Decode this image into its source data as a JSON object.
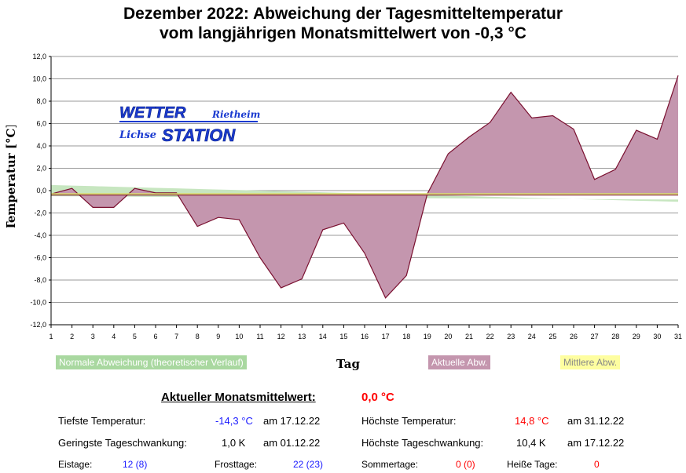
{
  "title_line1": "Dezember 2022: Abweichung der Tagesmitteltemperatur",
  "title_line2": "vom langjährigen Monatsmittelwert von -0,3 °C",
  "logo": {
    "word1": "WETTER",
    "word2": "STATION",
    "place1": "Rietheim",
    "place2": "Lichse"
  },
  "legend": {
    "normal": "Normale Abweichung (theoretischer Verlauf)",
    "actual": "Aktuelle Abw.",
    "mean": "Mittlere Abw."
  },
  "colors": {
    "actual_fill": "#c496ae",
    "actual_line": "#7a1030",
    "normal_fill": "#c7e6c0",
    "mean_line": "#d8d870",
    "grid": "#999999"
  },
  "chart_data": {
    "type": "area",
    "title": "Dezember 2022: Abweichung der Tagesmitteltemperatur vom langjährigen Monatsmittelwert von -0,3 °C",
    "xlabel": "Tag",
    "ylabel": "Temperatur [°C]",
    "ylim": [
      -12,
      12
    ],
    "yticks": [
      "12,0",
      "10,0",
      "8,0",
      "6,0",
      "4,0",
      "2,0",
      "0,0",
      "-2,0",
      "-4,0",
      "-6,0",
      "-8,0",
      "-10,0",
      "-12,0"
    ],
    "ytick_values": [
      12,
      10,
      8,
      6,
      4,
      2,
      0,
      -2,
      -4,
      -6,
      -8,
      -10,
      -12
    ],
    "x": [
      1,
      2,
      3,
      4,
      5,
      6,
      7,
      8,
      9,
      10,
      11,
      12,
      13,
      14,
      15,
      16,
      17,
      18,
      19,
      20,
      21,
      22,
      23,
      24,
      25,
      26,
      27,
      28,
      29,
      30,
      31
    ],
    "series": [
      {
        "name": "Aktuelle Abw.",
        "values": [
          -0.3,
          0.2,
          -1.5,
          -1.5,
          0.2,
          -0.2,
          -0.2,
          -3.2,
          -2.4,
          -2.6,
          -6.0,
          -8.7,
          -7.9,
          -3.5,
          -2.9,
          -5.6,
          -9.6,
          -7.6,
          -0.3,
          3.3,
          4.8,
          6.1,
          8.8,
          6.5,
          6.7,
          5.5,
          1.0,
          1.9,
          5.4,
          4.6,
          10.3
        ]
      },
      {
        "name": "Normale Abweichung (upper)",
        "values": [
          0.5,
          0.45,
          0.4,
          0.35,
          0.3,
          0.25,
          0.2,
          0.15,
          0.1,
          0.05,
          0.0,
          -0.05,
          -0.1,
          -0.15,
          -0.2,
          -0.25,
          -0.3,
          -0.35,
          -0.4,
          -0.45,
          -0.5,
          -0.55,
          -0.6,
          -0.65,
          -0.7,
          -0.75,
          -0.8,
          -0.85,
          -0.9,
          -0.95,
          -1.0
        ]
      },
      {
        "name": "Mittlere Abw.",
        "values": [
          -0.3,
          -0.3,
          -0.3,
          -0.3,
          -0.3,
          -0.3,
          -0.3,
          -0.3,
          -0.3,
          -0.3,
          -0.3,
          -0.3,
          -0.3,
          -0.3,
          -0.3,
          -0.3,
          -0.3,
          -0.3,
          -0.3,
          -0.3,
          -0.3,
          -0.3,
          -0.3,
          -0.3,
          -0.3,
          -0.3,
          -0.3,
          -0.3,
          -0.3,
          -0.3,
          -0.3
        ]
      }
    ]
  },
  "stats": {
    "monthly_label": "Aktueller Monatsmittelwert:",
    "monthly_value": "0,0 °C",
    "min_label": "Tiefste Temperatur:",
    "min_value": "-14,3 °C",
    "min_date": "am 17.12.22",
    "max_label": "Höchste Temperatur:",
    "max_value": "14,8 °C",
    "max_date": "am 31.12.22",
    "minrange_label": "Geringste Tageschwankung:",
    "minrange_value": "1,0 K",
    "minrange_date": "am 01.12.22",
    "maxrange_label": "Höchste Tageschwankung:",
    "maxrange_value": "10,4 K",
    "maxrange_date": "am 17.12.22",
    "eis_label": "Eistage:",
    "eis_value": "12 (8)",
    "frost_label": "Frosttage:",
    "frost_value": "22 (23)",
    "sommer_label": "Sommertage:",
    "sommer_value": "0 (0)",
    "heiss_label": "Heiße Tage:",
    "heiss_value": "0"
  }
}
